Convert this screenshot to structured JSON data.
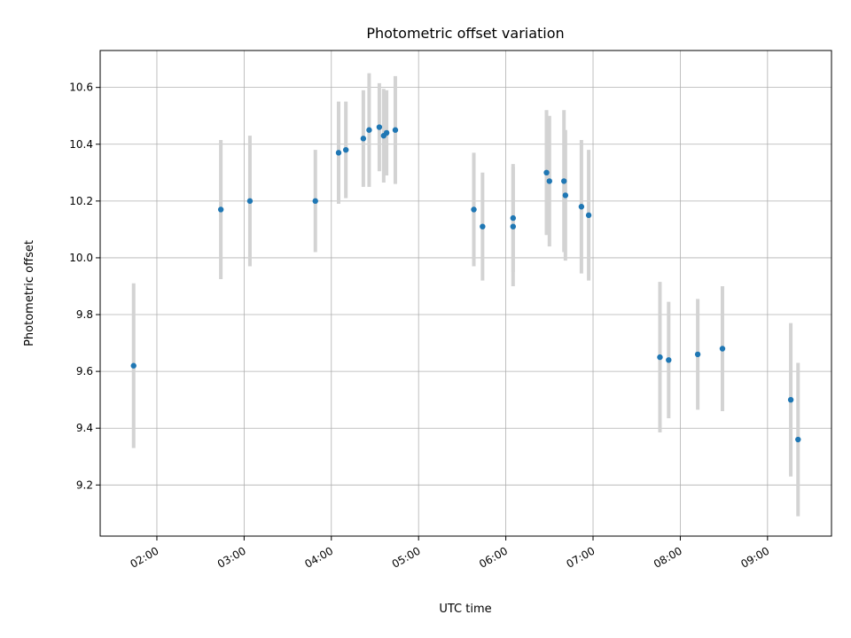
{
  "chart_data": {
    "type": "scatter",
    "title": "Photometric offset variation",
    "xlabel": "UTC time",
    "ylabel": "Photometric offset",
    "xlim": [
      "01:21",
      "09:44"
    ],
    "ylim": [
      9.02,
      10.73
    ],
    "x_ticks": [
      "02:00",
      "03:00",
      "04:00",
      "05:00",
      "06:00",
      "07:00",
      "08:00",
      "09:00"
    ],
    "y_ticks": [
      9.2,
      9.4,
      9.6,
      9.8,
      10.0,
      10.2,
      10.4,
      10.6
    ],
    "grid": true,
    "legend": "none",
    "colors": {
      "marker": "#1f77b4",
      "errorbar": "#d3d3d3"
    },
    "series": [
      {
        "points": [
          {
            "x": "01:44",
            "y": 9.62,
            "err": 0.29
          },
          {
            "x": "02:44",
            "y": 10.17,
            "err": 0.245
          },
          {
            "x": "03:04",
            "y": 10.2,
            "err": 0.23
          },
          {
            "x": "03:49",
            "y": 10.2,
            "err": 0.18
          },
          {
            "x": "04:05",
            "y": 10.37,
            "err": 0.18
          },
          {
            "x": "04:10",
            "y": 10.38,
            "err": 0.17
          },
          {
            "x": "04:22",
            "y": 10.42,
            "err": 0.17
          },
          {
            "x": "04:26",
            "y": 10.45,
            "err": 0.2
          },
          {
            "x": "04:33",
            "y": 10.46,
            "err": 0.155
          },
          {
            "x": "04:36",
            "y": 10.43,
            "err": 0.165
          },
          {
            "x": "04:38",
            "y": 10.44,
            "err": 0.15
          },
          {
            "x": "04:44",
            "y": 10.45,
            "err": 0.19
          },
          {
            "x": "05:38",
            "y": 10.17,
            "err": 0.2
          },
          {
            "x": "05:44",
            "y": 10.11,
            "err": 0.19
          },
          {
            "x": "06:05",
            "y": 10.11,
            "err": 0.21
          },
          {
            "x": "06:05",
            "y": 10.14,
            "err": 0.19
          },
          {
            "x": "06:28",
            "y": 10.3,
            "err": 0.22
          },
          {
            "x": "06:30",
            "y": 10.27,
            "err": 0.23
          },
          {
            "x": "06:40",
            "y": 10.27,
            "err": 0.25
          },
          {
            "x": "06:41",
            "y": 10.22,
            "err": 0.23
          },
          {
            "x": "06:52",
            "y": 10.18,
            "err": 0.235
          },
          {
            "x": "06:57",
            "y": 10.15,
            "err": 0.23
          },
          {
            "x": "07:46",
            "y": 9.65,
            "err": 0.265
          },
          {
            "x": "07:52",
            "y": 9.64,
            "err": 0.205
          },
          {
            "x": "08:12",
            "y": 9.66,
            "err": 0.195
          },
          {
            "x": "08:29",
            "y": 9.68,
            "err": 0.22
          },
          {
            "x": "09:16",
            "y": 9.5,
            "err": 0.27
          },
          {
            "x": "09:21",
            "y": 9.36,
            "err": 0.27
          }
        ]
      }
    ]
  }
}
